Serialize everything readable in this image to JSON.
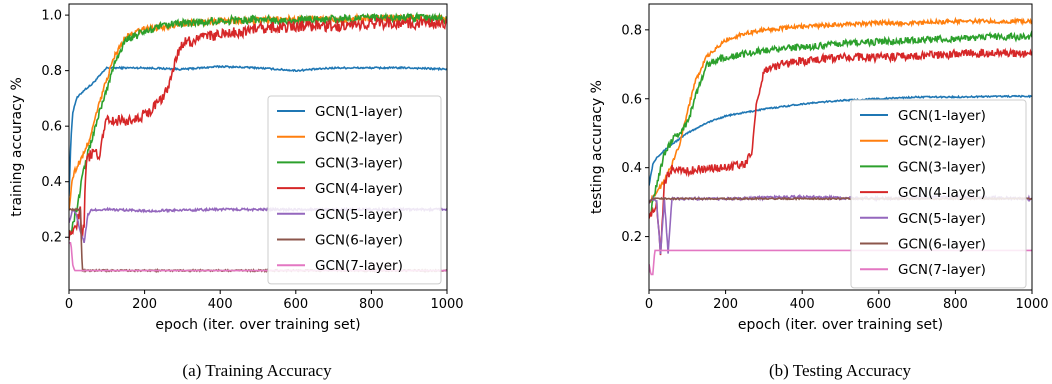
{
  "chart_data": [
    {
      "type": "line",
      "caption": "(a) Training Accuracy",
      "xlabel": "epoch (iter. over training set)",
      "ylabel": "training accuracy %",
      "xlim": [
        0,
        1000
      ],
      "ylim": [
        0.01,
        1.04
      ],
      "xticks": [
        0,
        200,
        400,
        600,
        800,
        1000
      ],
      "yticks": [
        0.2,
        0.4,
        0.6,
        0.8,
        1.0
      ],
      "ytick_labels": [
        "0.2",
        "0.4",
        "0.6",
        "0.8",
        "1.0"
      ],
      "grid": false,
      "legend": "center-right",
      "series": [
        {
          "name": "GCN(1-layer)",
          "color": "#1f77b4",
          "noise": 0.003,
          "x": [
            0,
            5,
            10,
            20,
            40,
            60,
            80,
            100,
            140,
            200,
            300,
            400,
            500,
            600,
            700,
            800,
            900,
            1000
          ],
          "y": [
            0.35,
            0.55,
            0.65,
            0.7,
            0.73,
            0.75,
            0.78,
            0.81,
            0.81,
            0.81,
            0.805,
            0.815,
            0.81,
            0.8,
            0.81,
            0.81,
            0.81,
            0.805
          ]
        },
        {
          "name": "GCN(2-layer)",
          "color": "#ff7f0e",
          "noise": 0.012,
          "x": [
            0,
            10,
            20,
            40,
            60,
            80,
            100,
            120,
            150,
            200,
            250,
            300,
            400,
            500,
            600,
            700,
            800,
            900,
            1000
          ],
          "y": [
            0.3,
            0.42,
            0.45,
            0.5,
            0.58,
            0.68,
            0.77,
            0.85,
            0.92,
            0.95,
            0.96,
            0.97,
            0.98,
            0.98,
            0.985,
            0.985,
            0.99,
            0.99,
            0.99
          ]
        },
        {
          "name": "GCN(3-layer)",
          "color": "#2ca02c",
          "noise": 0.015,
          "x": [
            0,
            20,
            40,
            60,
            80,
            100,
            120,
            150,
            200,
            250,
            300,
            400,
            500,
            600,
            700,
            800,
            900,
            1000
          ],
          "y": [
            0.2,
            0.3,
            0.45,
            0.55,
            0.65,
            0.73,
            0.83,
            0.91,
            0.94,
            0.96,
            0.97,
            0.98,
            0.985,
            0.98,
            0.985,
            0.99,
            0.99,
            0.985
          ]
        },
        {
          "name": "GCN(4-layer)",
          "color": "#d62728",
          "noise": 0.02,
          "x": [
            0,
            20,
            30,
            35,
            40,
            45,
            60,
            80,
            100,
            150,
            200,
            250,
            270,
            290,
            300,
            400,
            500,
            600,
            700,
            800,
            900,
            1000
          ],
          "y": [
            0.2,
            0.25,
            0.3,
            0.2,
            0.25,
            0.48,
            0.5,
            0.5,
            0.62,
            0.62,
            0.64,
            0.7,
            0.78,
            0.87,
            0.9,
            0.93,
            0.95,
            0.96,
            0.96,
            0.97,
            0.97,
            0.97
          ]
        },
        {
          "name": "GCN(5-layer)",
          "color": "#9467bd",
          "noise": 0.004,
          "x": [
            0,
            10,
            20,
            30,
            40,
            50,
            60,
            80,
            100,
            200,
            400,
            600,
            800,
            1000
          ],
          "y": [
            0.25,
            0.3,
            0.28,
            0.22,
            0.18,
            0.28,
            0.3,
            0.295,
            0.3,
            0.295,
            0.3,
            0.3,
            0.3,
            0.3
          ]
        },
        {
          "name": "GCN(6-layer)",
          "color": "#8c564b",
          "noise": 0.003,
          "x": [
            0,
            10,
            20,
            30,
            35,
            40,
            45,
            1000
          ],
          "y": [
            0.3,
            0.3,
            0.3,
            0.3,
            0.08,
            0.08,
            0.08,
            0.08
          ]
        },
        {
          "name": "GCN(7-layer)",
          "color": "#e377c2",
          "noise": 0.0,
          "x": [
            0,
            5,
            10,
            15,
            20,
            1000
          ],
          "y": [
            0.18,
            0.18,
            0.1,
            0.08,
            0.08,
            0.08
          ]
        }
      ]
    },
    {
      "type": "line",
      "caption": "(b) Testing Accuracy",
      "xlabel": "epoch (iter. over training set)",
      "ylabel": "testing accuracy %",
      "xlim": [
        0,
        1000
      ],
      "ylim": [
        0.045,
        0.875
      ],
      "xticks": [
        0,
        200,
        400,
        600,
        800,
        1000
      ],
      "yticks": [
        0.2,
        0.4,
        0.6,
        0.8
      ],
      "ytick_labels": [
        "0.2",
        "0.4",
        "0.6",
        "0.8"
      ],
      "grid": false,
      "legend": "center-right",
      "series": [
        {
          "name": "GCN(1-layer)",
          "color": "#1f77b4",
          "noise": 0.002,
          "x": [
            0,
            10,
            20,
            50,
            100,
            150,
            200,
            300,
            400,
            500,
            600,
            700,
            800,
            900,
            1000
          ],
          "y": [
            0.35,
            0.41,
            0.43,
            0.46,
            0.5,
            0.53,
            0.55,
            0.57,
            0.585,
            0.595,
            0.6,
            0.605,
            0.605,
            0.607,
            0.607
          ]
        },
        {
          "name": "GCN(2-layer)",
          "color": "#ff7f0e",
          "noise": 0.006,
          "x": [
            0,
            20,
            40,
            60,
            80,
            100,
            120,
            150,
            200,
            250,
            300,
            400,
            500,
            600,
            700,
            800,
            900,
            1000
          ],
          "y": [
            0.3,
            0.33,
            0.36,
            0.41,
            0.47,
            0.56,
            0.65,
            0.72,
            0.77,
            0.79,
            0.8,
            0.81,
            0.815,
            0.82,
            0.82,
            0.825,
            0.825,
            0.825
          ]
        },
        {
          "name": "GCN(3-layer)",
          "color": "#2ca02c",
          "noise": 0.01,
          "x": [
            0,
            20,
            40,
            60,
            80,
            100,
            120,
            150,
            200,
            300,
            400,
            500,
            600,
            700,
            800,
            900,
            1000
          ],
          "y": [
            0.25,
            0.35,
            0.44,
            0.48,
            0.5,
            0.53,
            0.6,
            0.7,
            0.72,
            0.74,
            0.75,
            0.76,
            0.765,
            0.77,
            0.775,
            0.78,
            0.78
          ]
        },
        {
          "name": "GCN(4-layer)",
          "color": "#d62728",
          "noise": 0.012,
          "x": [
            0,
            20,
            30,
            40,
            50,
            60,
            100,
            150,
            200,
            250,
            270,
            280,
            300,
            350,
            400,
            500,
            600,
            700,
            800,
            900,
            1000
          ],
          "y": [
            0.25,
            0.3,
            0.15,
            0.35,
            0.38,
            0.4,
            0.39,
            0.4,
            0.4,
            0.41,
            0.45,
            0.58,
            0.68,
            0.7,
            0.71,
            0.72,
            0.72,
            0.725,
            0.73,
            0.735,
            0.73
          ]
        },
        {
          "name": "GCN(5-layer)",
          "color": "#9467bd",
          "noise": 0.004,
          "x": [
            0,
            10,
            20,
            30,
            40,
            50,
            60,
            100,
            200,
            400,
            600,
            800,
            1000
          ],
          "y": [
            0.3,
            0.31,
            0.3,
            0.15,
            0.31,
            0.15,
            0.31,
            0.31,
            0.31,
            0.315,
            0.31,
            0.315,
            0.31
          ]
        },
        {
          "name": "GCN(6-layer)",
          "color": "#8c564b",
          "noise": 0.002,
          "x": [
            0,
            10,
            20,
            30,
            40,
            45,
            50,
            1000
          ],
          "y": [
            0.3,
            0.31,
            0.31,
            0.31,
            0.31,
            0.31,
            0.31,
            0.31
          ]
        },
        {
          "name": "GCN(7-layer)",
          "color": "#e377c2",
          "noise": 0.0,
          "x": [
            0,
            5,
            10,
            15,
            20,
            1000
          ],
          "y": [
            0.12,
            0.09,
            0.09,
            0.16,
            0.16,
            0.16
          ]
        }
      ]
    }
  ]
}
